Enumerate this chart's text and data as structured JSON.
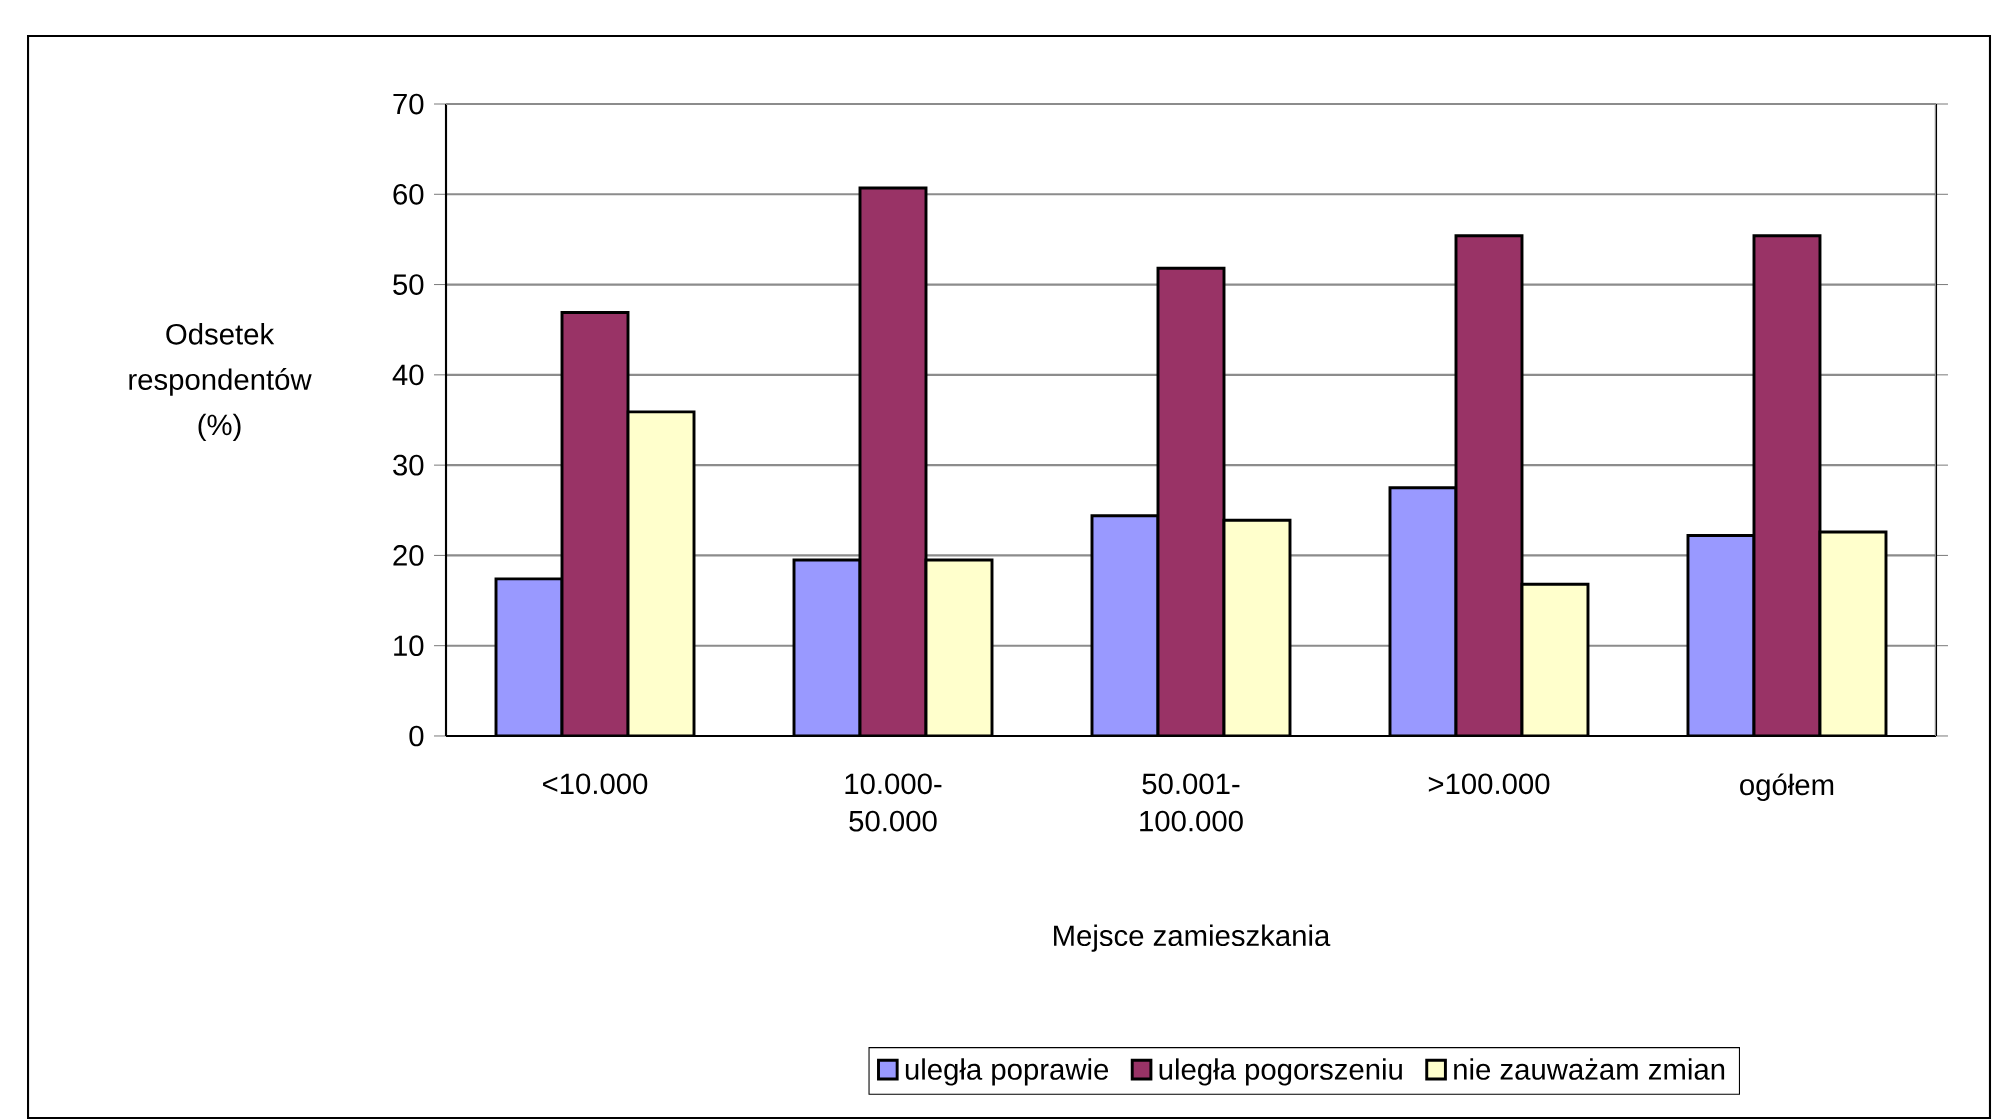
{
  "chart_data": {
    "type": "bar",
    "xlabel": "Mejsce zamieszkania",
    "ylabel": "Odsetek respondentów (%)",
    "categories": [
      "<10.000",
      "10.000-50.000",
      "50.001-100.000",
      ">100.000",
      "ogółem"
    ],
    "series": [
      {
        "name": "uległa poprawie",
        "color": "#9999ff",
        "values": [
          17.4,
          19.5,
          24.4,
          27.5,
          22.2
        ]
      },
      {
        "name": "uległa pogorszeniu",
        "color": "#993366",
        "values": [
          46.9,
          60.7,
          51.8,
          55.4,
          55.4
        ]
      },
      {
        "name": "nie zauważam zmian",
        "color": "#ffffcc",
        "values": [
          35.9,
          19.5,
          23.9,
          16.8,
          22.6
        ]
      }
    ],
    "ylim": [
      0,
      70
    ],
    "yticks": [
      0,
      10,
      20,
      30,
      40,
      50,
      60,
      70
    ],
    "grid": "y",
    "legend": "bottom"
  }
}
